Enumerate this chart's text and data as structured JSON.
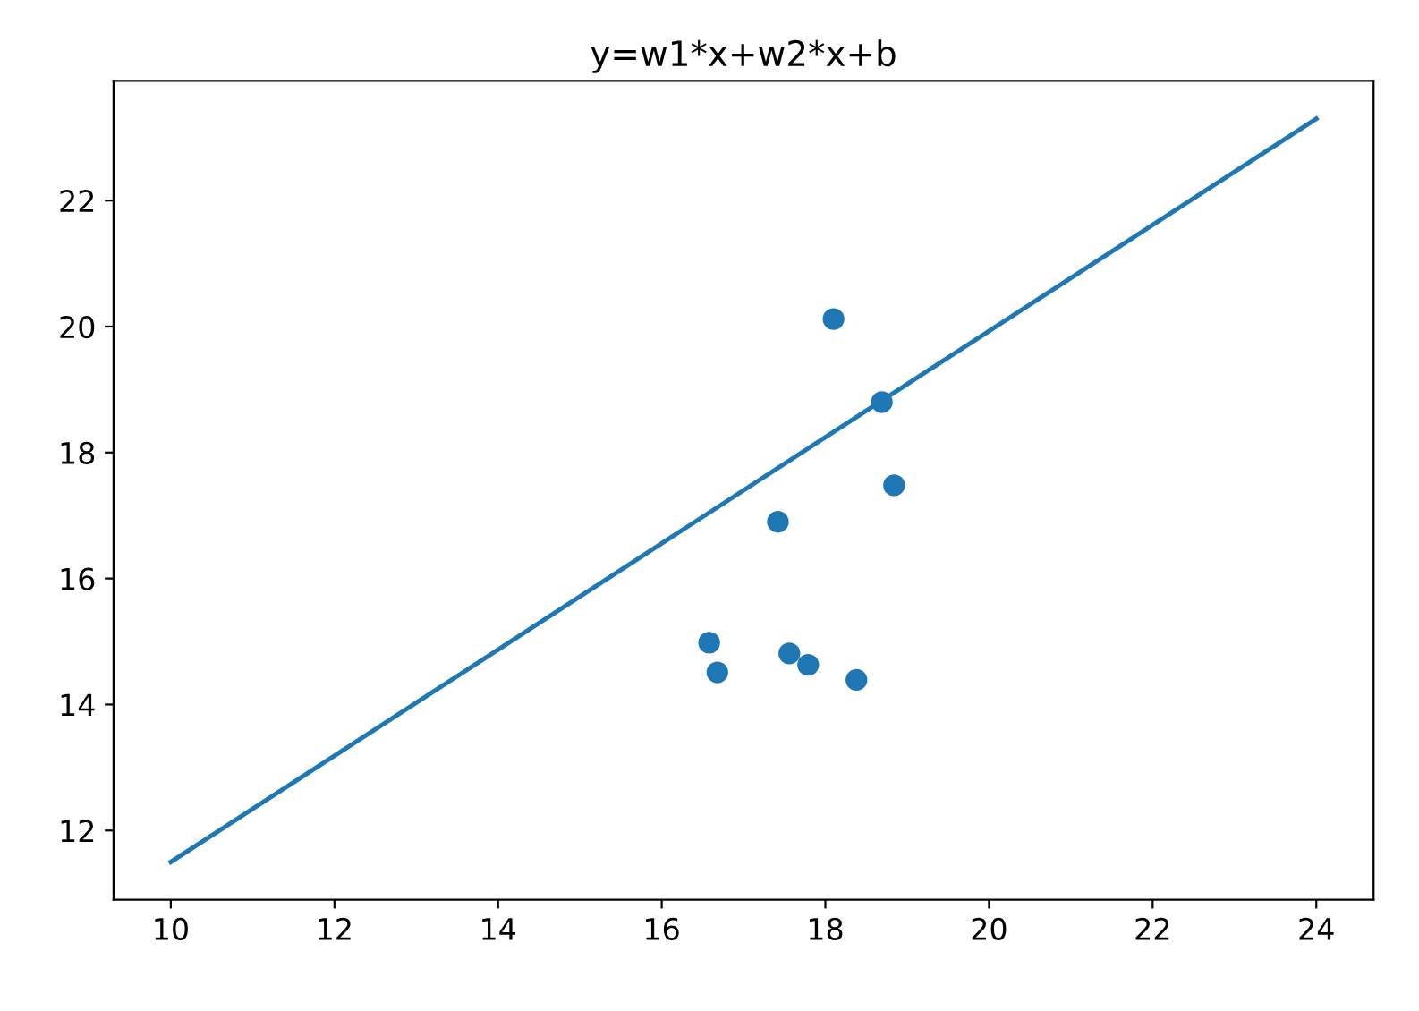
{
  "chart_data": {
    "type": "scatter",
    "title": "y=w1*x+w2*x+b",
    "xlim": [
      9.3,
      24.7
    ],
    "ylim": [
      10.9,
      23.9
    ],
    "xticks": [
      10,
      12,
      14,
      16,
      18,
      20,
      22,
      24
    ],
    "yticks": [
      12,
      14,
      16,
      18,
      20,
      22
    ],
    "grid": false,
    "series": [
      {
        "marker": "circle",
        "color": "#1f77b4",
        "x": [
          18.1,
          18.69,
          18.84,
          17.42,
          16.58,
          16.68,
          17.56,
          17.79,
          18.38
        ],
        "values": [
          20.12,
          18.8,
          17.48,
          16.9,
          14.98,
          14.51,
          14.81,
          14.63,
          14.39
        ]
      },
      {
        "type": "line",
        "color": "#1f77b4",
        "line_style": "solid",
        "marker": "none",
        "x": [
          10,
          24
        ],
        "values": [
          11.5,
          23.3
        ]
      }
    ]
  }
}
